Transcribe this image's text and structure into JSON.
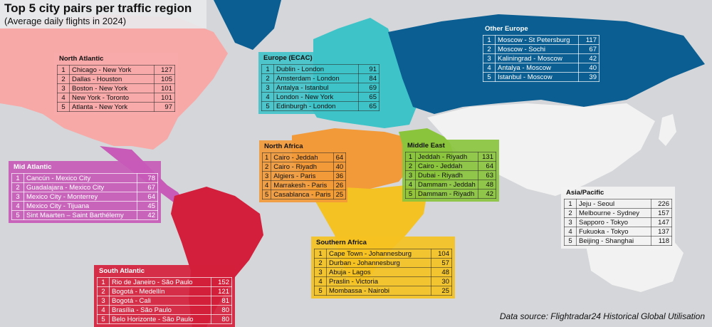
{
  "title": "Top 5 city pairs per traffic region",
  "subtitle": "(Average daily flights in 2024)",
  "source": "Data source: Flightradar24 Historical Global Utilisation",
  "colors": {
    "ocean": "#d4d6d9",
    "north_atlantic": "#f7a9a8",
    "mid_atlantic": "#c85ab8",
    "south_atlantic": "#d41f3c",
    "europe": "#3ec3c8",
    "other_europe": "#0b5e92",
    "north_africa": "#f29a3a",
    "middle_east": "#8ac43d",
    "southern_africa": "#f4c222",
    "asia_pacific": "#f2f2f2"
  },
  "regions": [
    {
      "id": "north-atlantic",
      "name": "North Atlantic",
      "pairs": [
        {
          "rank": "1",
          "pair": "Chicago - New York",
          "flights": "127"
        },
        {
          "rank": "2",
          "pair": "Dallas - Houston",
          "flights": "105"
        },
        {
          "rank": "3",
          "pair": "Boston - New York",
          "flights": "101"
        },
        {
          "rank": "4",
          "pair": "New York - Toronto",
          "flights": "101"
        },
        {
          "rank": "5",
          "pair": "Atlanta - New York",
          "flights": "97"
        }
      ]
    },
    {
      "id": "europe-ecac",
      "name": "Europe (ECAC)",
      "pairs": [
        {
          "rank": "1",
          "pair": "Dublin - London",
          "flights": "91"
        },
        {
          "rank": "2",
          "pair": "Amsterdam - London",
          "flights": "84"
        },
        {
          "rank": "3",
          "pair": "Antalya - Istanbul",
          "flights": "69"
        },
        {
          "rank": "4",
          "pair": "London - New York",
          "flights": "65"
        },
        {
          "rank": "5",
          "pair": "Edinburgh - London",
          "flights": "65"
        }
      ]
    },
    {
      "id": "other-europe",
      "name": "Other Europe",
      "pairs": [
        {
          "rank": "1",
          "pair": "Moscow - St Petersburg",
          "flights": "117"
        },
        {
          "rank": "2",
          "pair": "Moscow - Sochi",
          "flights": "67"
        },
        {
          "rank": "3",
          "pair": "Kaliningrad - Moscow",
          "flights": "42"
        },
        {
          "rank": "4",
          "pair": "Antalya - Moscow",
          "flights": "40"
        },
        {
          "rank": "5",
          "pair": "Istanbul - Moscow",
          "flights": "39"
        }
      ]
    },
    {
      "id": "mid-atlantic",
      "name": "Mid Atlantic",
      "pairs": [
        {
          "rank": "1",
          "pair": "Cancún - Mexico City",
          "flights": "78"
        },
        {
          "rank": "2",
          "pair": "Guadalajara - Mexico City",
          "flights": "67"
        },
        {
          "rank": "3",
          "pair": "Mexico City - Monterrey",
          "flights": "64"
        },
        {
          "rank": "4",
          "pair": "Mexico City - Tijuana",
          "flights": "45"
        },
        {
          "rank": "5",
          "pair": "Sint Maarten – Saint Barthélemy",
          "flights": "42"
        }
      ]
    },
    {
      "id": "north-africa",
      "name": "North Africa",
      "pairs": [
        {
          "rank": "1",
          "pair": "Cairo - Jeddah",
          "flights": "64"
        },
        {
          "rank": "2",
          "pair": "Cairo - Riyadh",
          "flights": "40"
        },
        {
          "rank": "3",
          "pair": "Algiers - Paris",
          "flights": "36"
        },
        {
          "rank": "4",
          "pair": "Marrakesh - Paris",
          "flights": "26"
        },
        {
          "rank": "5",
          "pair": "Casablanca - Paris",
          "flights": "25"
        }
      ]
    },
    {
      "id": "middle-east",
      "name": "Middle East",
      "pairs": [
        {
          "rank": "1",
          "pair": "Jeddah - Riyadh",
          "flights": "131"
        },
        {
          "rank": "2",
          "pair": "Cairo - Jeddah",
          "flights": "64"
        },
        {
          "rank": "3",
          "pair": "Dubai - Riyadh",
          "flights": "63"
        },
        {
          "rank": "4",
          "pair": "Dammam - Jeddah",
          "flights": "48"
        },
        {
          "rank": "5",
          "pair": "Dammam - Riyadh",
          "flights": "42"
        }
      ]
    },
    {
      "id": "asia-pacific",
      "name": "Asia/Pacific",
      "pairs": [
        {
          "rank": "1",
          "pair": "Jeju - Seoul",
          "flights": "226"
        },
        {
          "rank": "2",
          "pair": "Melbourne - Sydney",
          "flights": "157"
        },
        {
          "rank": "3",
          "pair": "Sapporo - Tokyo",
          "flights": "147"
        },
        {
          "rank": "4",
          "pair": "Fukuoka - Tokyo",
          "flights": "137"
        },
        {
          "rank": "5",
          "pair": "Beijing - Shanghai",
          "flights": "118"
        }
      ]
    },
    {
      "id": "southern-africa",
      "name": "Southern Africa",
      "pairs": [
        {
          "rank": "1",
          "pair": "Cape Town - Johannesburg",
          "flights": "104"
        },
        {
          "rank": "2",
          "pair": "Durban - Johannesburg",
          "flights": "57"
        },
        {
          "rank": "3",
          "pair": "Abuja - Lagos",
          "flights": "48"
        },
        {
          "rank": "4",
          "pair": "Praslin - Victoria",
          "flights": "30"
        },
        {
          "rank": "5",
          "pair": "Mombassa - Nairobi",
          "flights": "25"
        }
      ]
    },
    {
      "id": "south-atlantic",
      "name": "South Atlantic",
      "pairs": [
        {
          "rank": "1",
          "pair": "Rio de Janeiro - São Paulo",
          "flights": "152"
        },
        {
          "rank": "2",
          "pair": "Bogotá - Medellín",
          "flights": "121"
        },
        {
          "rank": "3",
          "pair": "Bogotá - Cali",
          "flights": "81"
        },
        {
          "rank": "4",
          "pair": "Brasília - São Paulo",
          "flights": "80"
        },
        {
          "rank": "5",
          "pair": "Belo Horizonte - São Paulo",
          "flights": "80"
        }
      ]
    }
  ]
}
